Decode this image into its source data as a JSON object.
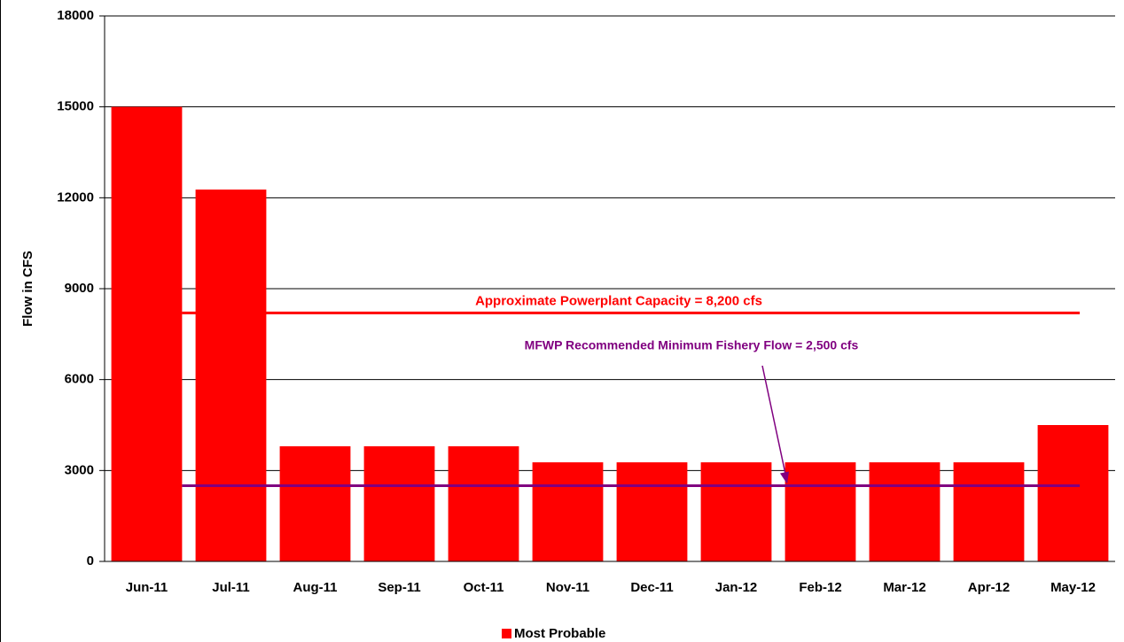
{
  "chart_data": {
    "type": "bar",
    "y_label": "Flow in CFS",
    "categories": [
      "Jun-11",
      "Jul-11",
      "Aug-11",
      "Sep-11",
      "Oct-11",
      "Nov-11",
      "Dec-11",
      "Jan-12",
      "Feb-12",
      "Mar-12",
      "Apr-12",
      "May-12"
    ],
    "series": [
      {
        "name": "Most Probable",
        "color": "#ff0000",
        "values": [
          15000,
          12270,
          3800,
          3800,
          3800,
          3270,
          3270,
          3270,
          3270,
          3270,
          3270,
          4500
        ]
      }
    ],
    "ylim": [
      0,
      18000
    ],
    "yticks": [
      0,
      3000,
      6000,
      9000,
      12000,
      15000,
      18000
    ],
    "grid": true,
    "reference_lines": [
      {
        "label": "Approximate Powerplant Capacity = 8,200 cfs",
        "value": 8200,
        "color": "#ff0000"
      },
      {
        "label": "MFWP Recommended Minimum Fishery Flow = 2,500 cfs",
        "value": 2500,
        "color": "#800080"
      }
    ],
    "legend": "bottom"
  }
}
